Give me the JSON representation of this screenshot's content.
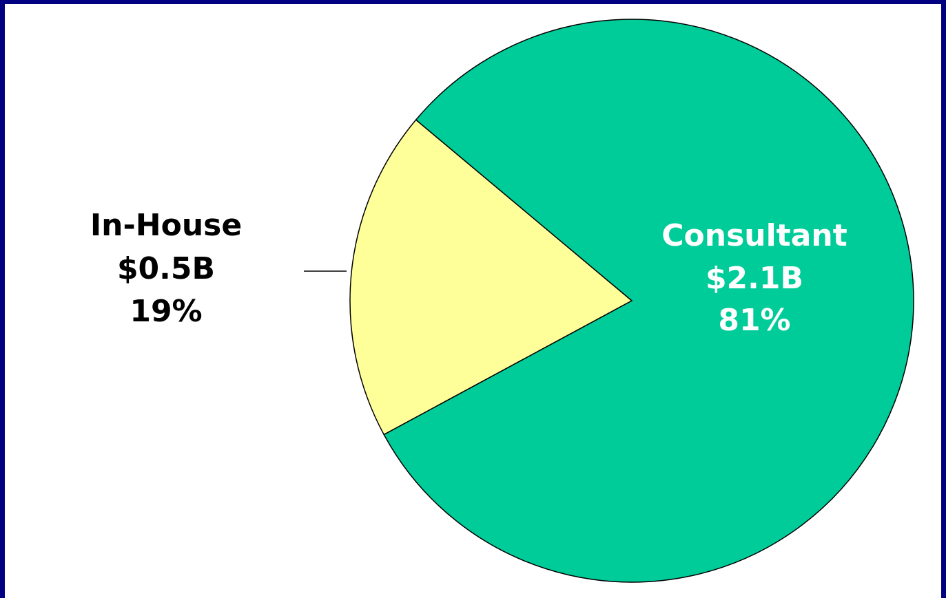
{
  "chart_data": {
    "type": "pie",
    "categories": [
      "In-House",
      "Consultant"
    ],
    "values": [
      19,
      81
    ],
    "value_labels": [
      "19%",
      "81%"
    ],
    "amount_labels": [
      "$0.5B",
      "$2.1B"
    ],
    "colors": [
      "#ffff99",
      "#00cc99"
    ],
    "label_colors": [
      "#000000",
      "#ffffff"
    ]
  }
}
